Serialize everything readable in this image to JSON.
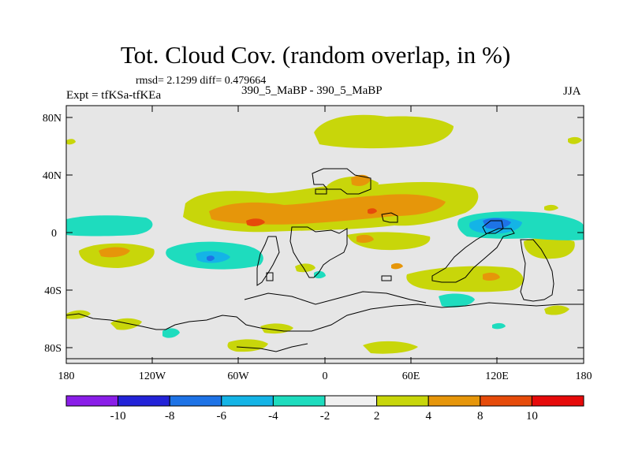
{
  "title": "Tot. Cloud Cov. (random overlap, in %)",
  "stats_line": "rmsd= 2.1299  diff= 0.479664",
  "left_label": "Expt = tfKSa-tfKEa",
  "center_label": "390_5_MaBP - 390_5_MaBP",
  "right_label": "JJA",
  "lat_ticks": [
    "80N",
    "40N",
    "0",
    "40S",
    "80S"
  ],
  "lon_ticks": [
    "180",
    "120W",
    "60W",
    "0",
    "60E",
    "120E",
    "180"
  ],
  "colorbar": {
    "labels": [
      "-10",
      "-8",
      "-6",
      "-4",
      "-2",
      "2",
      "4",
      "8",
      "10"
    ],
    "colors": [
      "#8a1ee8",
      "#2323d8",
      "#1e73e6",
      "#14b4e6",
      "#1edcbe",
      "#f0f0f0",
      "#c8d60a",
      "#e6960a",
      "#e64b0a",
      "#e60a0a"
    ]
  },
  "palette": {
    "neutral": "#e6e6e6",
    "pos2": "#c8d60a",
    "pos4": "#e6960a",
    "pos8": "#e64b0a",
    "neg2": "#1edcbe",
    "neg4": "#14b4e6",
    "neg6": "#1e73e6"
  }
}
